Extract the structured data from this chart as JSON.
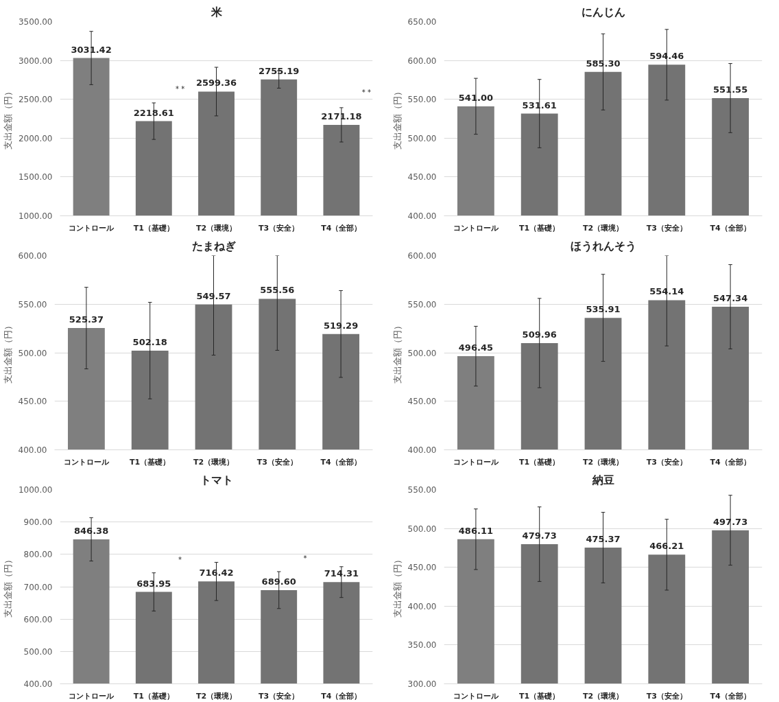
{
  "chart_data": [
    {
      "type": "bar",
      "title": "米",
      "ylabel": "支出金額（円）",
      "categories": [
        "コントロール",
        "T1（基礎）",
        "T2（環境）",
        "T3（安全）",
        "T4（全部）"
      ],
      "values": [
        3031.42,
        2218.61,
        2599.36,
        2755.19,
        2171.18
      ],
      "colors": [
        "#7f7f7f",
        "#737373",
        "#737373",
        "#737373",
        "#737373"
      ],
      "errors": [
        343,
        235,
        313,
        112,
        221
      ],
      "ylim": [
        1000,
        3500
      ],
      "grid": "y",
      "yticks": [
        {
          "value": 1000,
          "label": "1000.00"
        },
        {
          "value": 1500,
          "label": "1500.00"
        },
        {
          "value": 2000,
          "label": "2000.00"
        },
        {
          "value": 2500,
          "label": "2500.00"
        },
        {
          "value": 3000,
          "label": "3000.00"
        },
        {
          "value": 3500,
          "label": "3500.00"
        }
      ],
      "annotations": [
        "* *",
        "* *"
      ],
      "value_labels": [
        "3031.42",
        "2218.61",
        "2599.36",
        "2755.19",
        "2171.18"
      ]
    },
    {
      "type": "bar",
      "title": "にんじん",
      "ylabel": "支出金額（円）",
      "categories": [
        "コントロール",
        "T1（基礎）",
        "T2（環境）",
        "T3（安全）",
        "T4（全部）"
      ],
      "values": [
        541.0,
        531.61,
        585.3,
        594.46,
        551.55
      ],
      "colors": [
        "#7f7f7f",
        "#737373",
        "#737373",
        "#737373",
        "#737373"
      ],
      "errors": [
        36,
        44,
        49,
        45.5,
        44.5
      ],
      "value_labels": [
        "541.00",
        "531.61",
        "585.30",
        "594.46",
        "551.55"
      ],
      "ylim": [
        400,
        650
      ],
      "yticks": [
        {
          "value": 400,
          "label": "400.00"
        },
        {
          "value": 450,
          "label": "450.00"
        },
        {
          "value": 500,
          "label": "500.00"
        },
        {
          "value": 550,
          "label": "550.00"
        },
        {
          "value": 600,
          "label": "600.00"
        },
        {
          "value": 650,
          "label": "650.00"
        }
      ],
      "grid": "y"
    },
    {
      "type": "bar",
      "title": "たまねぎ",
      "ylabel": "支出金額（円）",
      "categories": [
        "コントロール",
        "T1（基礎）",
        "T2（環境）",
        "T3（安全）",
        "T4（全部）"
      ],
      "values": [
        525.37,
        502.18,
        549.57,
        555.56,
        519.29
      ],
      "colors": [
        "#7f7f7f",
        "#737373",
        "#737373",
        "#737373",
        "#737373"
      ],
      "errors": [
        42,
        49.7,
        [
          497.5,
          600
        ],
        [
          502.5,
          600
        ],
        44.7
      ],
      "value_labels": [
        "525.37",
        "502.18",
        "549.57",
        "555.56",
        "519.29"
      ],
      "ylim": [
        400,
        600
      ],
      "yticks": [
        {
          "value": 400,
          "label": "400.00"
        },
        {
          "value": 450,
          "label": "450.00"
        },
        {
          "value": 500,
          "label": "500.00"
        },
        {
          "value": 550,
          "label": "550.00"
        },
        {
          "value": 600,
          "label": "600.00"
        }
      ],
      "grid": "y"
    },
    {
      "type": "bar",
      "title": "ほうれんそう",
      "ylabel": "支出金額（円）",
      "categories": [
        "コントロール",
        "T1（基礎）",
        "T2（環境）",
        "T3（安全）",
        "T4（全部）"
      ],
      "values": [
        496.45,
        509.96,
        535.91,
        554.14,
        547.34
      ],
      "colors": [
        "#7f7f7f",
        "#737373",
        "#737373",
        "#737373",
        "#737373"
      ],
      "errors": [
        30.8,
        46,
        44.8,
        [
          507,
          600
        ],
        43.4
      ],
      "value_labels": [
        "496.45",
        "509.96",
        "535.91",
        "554.14",
        "547.34"
      ],
      "ylim": [
        400,
        600
      ],
      "yticks": [
        {
          "value": 400,
          "label": "400.00"
        },
        {
          "value": 450,
          "label": "450.00"
        },
        {
          "value": 500,
          "label": "500.00"
        },
        {
          "value": 550,
          "label": "550.00"
        },
        {
          "value": 600,
          "label": "600.00"
        }
      ],
      "grid": "y"
    },
    {
      "type": "bar",
      "title": "トマト",
      "ylabel": "支出金額（円）",
      "categories": [
        "コントロール",
        "T1（基礎）",
        "T2（環境）",
        "T3（安全）",
        "T4（全部）"
      ],
      "values": [
        846.38,
        683.95,
        716.42,
        689.6,
        714.31
      ],
      "colors": [
        "#7f7f7f",
        "#737373",
        "#737373",
        "#737373",
        "#737373"
      ],
      "errors": [
        67,
        59,
        59,
        57,
        47.6
      ],
      "ylim": [
        400,
        1000
      ],
      "yticks": [
        {
          "value": 400,
          "label": "400.00"
        },
        {
          "value": 500,
          "label": "500.00"
        },
        {
          "value": 600,
          "label": "600.00"
        },
        {
          "value": 700,
          "label": "700.00"
        },
        {
          "value": 800,
          "label": "800.00"
        },
        {
          "value": 900,
          "label": "900.00"
        },
        {
          "value": 1000,
          "label": "1000.00"
        }
      ],
      "annotations": [
        "*",
        "*"
      ],
      "value_labels": [
        "846.38",
        "683.95",
        "716.42",
        "689.60",
        "714.31"
      ],
      "grid": "y"
    },
    {
      "type": "bar",
      "title": "納豆",
      "ylabel": "支出金額（円）",
      "categories": [
        "コントロール",
        "T1（基礎）",
        "T2（環境）",
        "T3（安全）",
        "T4（全部）"
      ],
      "values": [
        486.11,
        479.73,
        475.37,
        466.21,
        497.73
      ],
      "colors": [
        "#7f7f7f",
        "#737373",
        "#737373",
        "#737373",
        "#737373"
      ],
      "errors": [
        39,
        48,
        45.4,
        45.6,
        45
      ],
      "value_labels": [
        "486.11",
        "479.73",
        "475.37",
        "466.21",
        "497.73"
      ],
      "ylim": [
        300,
        550
      ],
      "yticks": [
        {
          "value": 300,
          "label": "300.00"
        },
        {
          "value": 350,
          "label": "350.00"
        },
        {
          "value": 400,
          "label": "400.00"
        },
        {
          "value": 450,
          "label": "450.00"
        },
        {
          "value": 500,
          "label": "500.00"
        },
        {
          "value": 550,
          "label": "550.00"
        }
      ],
      "grid": "y"
    }
  ]
}
